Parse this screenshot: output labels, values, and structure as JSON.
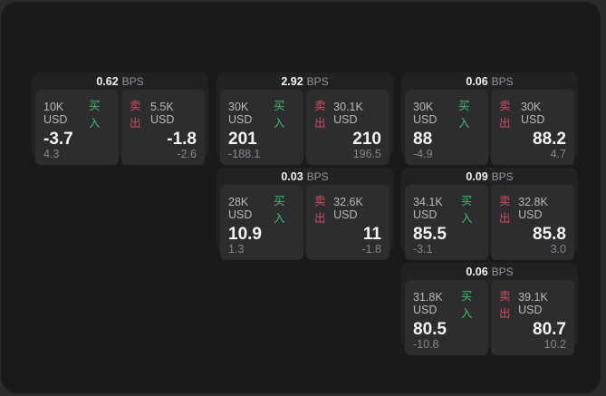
{
  "labels": {
    "bps_unit": "BPS",
    "buy": "买入",
    "sell": "卖出"
  },
  "colors": {
    "buy_green": "#3dbd6e",
    "sell_red": "#cf4c61",
    "panel_bg": "#1a1a1c",
    "card_bg": "#222224",
    "tile_bg": "#2d2d2f"
  },
  "cards": [
    {
      "bps": "0.62",
      "buy": {
        "amount": "10K USD",
        "price": "-3.7",
        "delta": "4.3"
      },
      "sell": {
        "amount": "5.5K USD",
        "price": "-1.8",
        "delta": "-2.6"
      }
    },
    {
      "bps": "2.92",
      "buy": {
        "amount": "30K USD",
        "price": "201",
        "delta": "-188.1"
      },
      "sell": {
        "amount": "30.1K USD",
        "price": "210",
        "delta": "196.5"
      }
    },
    {
      "bps": "0.06",
      "buy": {
        "amount": "30K USD",
        "price": "88",
        "delta": "-4.9"
      },
      "sell": {
        "amount": "30K USD",
        "price": "88.2",
        "delta": "4.7"
      }
    },
    {
      "bps": "0.03",
      "buy": {
        "amount": "28K USD",
        "price": "10.9",
        "delta": "1.3"
      },
      "sell": {
        "amount": "32.6K USD",
        "price": "11",
        "delta": "-1.8"
      }
    },
    {
      "bps": "0.09",
      "buy": {
        "amount": "34.1K USD",
        "price": "85.5",
        "delta": "-3.1"
      },
      "sell": {
        "amount": "32.8K USD",
        "price": "85.8",
        "delta": "3.0"
      }
    },
    {
      "bps": "0.06",
      "buy": {
        "amount": "31.8K USD",
        "price": "80.5",
        "delta": "-10.8"
      },
      "sell": {
        "amount": "39.1K USD",
        "price": "80.7",
        "delta": "10.2"
      }
    }
  ]
}
